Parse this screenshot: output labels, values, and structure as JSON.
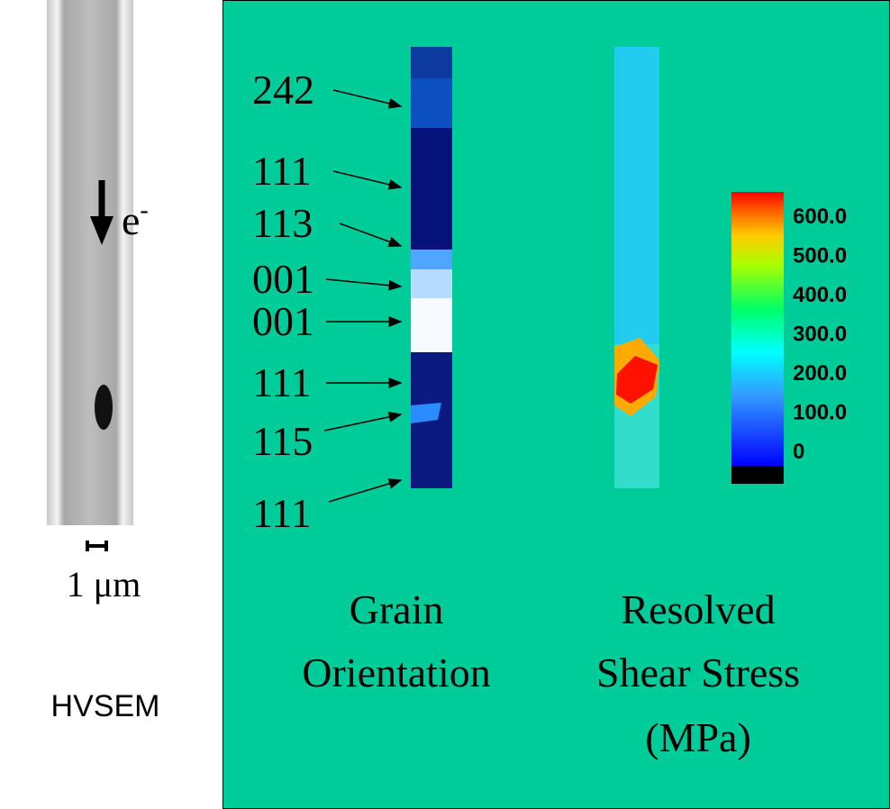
{
  "sem": {
    "electron": {
      "symbol": "e",
      "charge": "-"
    },
    "scale": "1 μm",
    "label": "HVSEM"
  },
  "grains": {
    "labels": [
      "242",
      "111",
      "113",
      "001",
      "001",
      "111",
      "115",
      "111"
    ],
    "caption": [
      "Grain",
      "Orientation"
    ]
  },
  "stress": {
    "colorbar": [
      "600.0",
      "500.0",
      "400.0",
      "300.0",
      "200.0",
      "100.0",
      "0"
    ],
    "caption": [
      "Resolved",
      "Shear Stress",
      "(MPa)"
    ]
  }
}
